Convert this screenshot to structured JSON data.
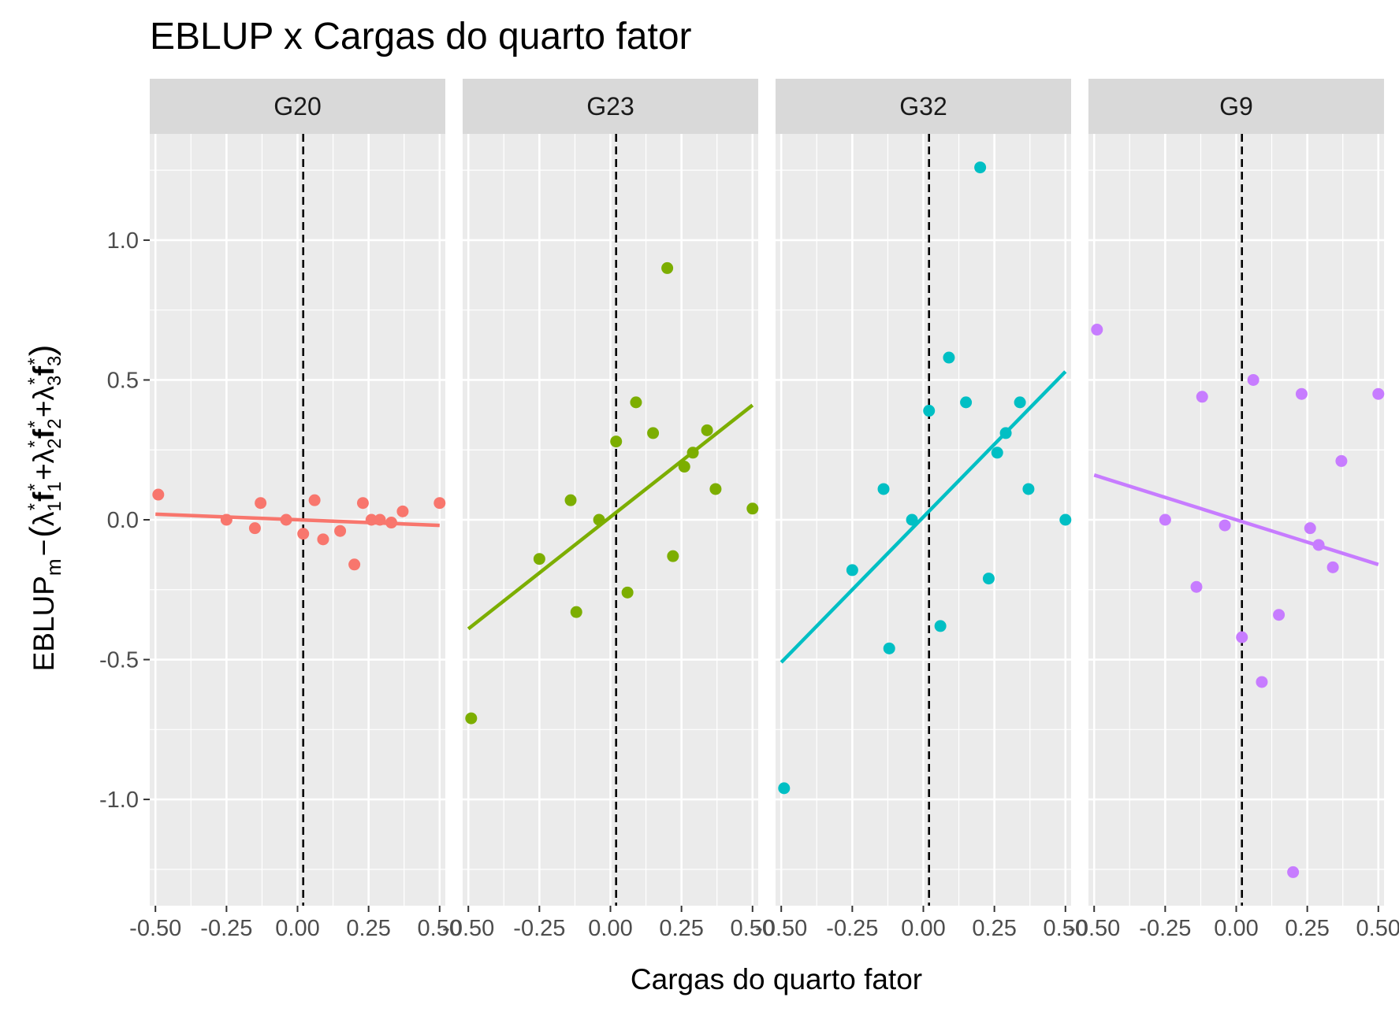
{
  "chart_data": {
    "type": "scatter",
    "title": "EBLUP x Cargas do quarto fator",
    "xlabel": "Cargas do quarto fator",
    "ylabel": {
      "main": "EBLUP",
      "sub_m": "m",
      "minus": "−",
      "open": "(",
      "close": ")",
      "plus": "+",
      "lambda": "λ",
      "star": "*",
      "f": "f",
      "i1": "1",
      "i2": "2",
      "i3": "3"
    },
    "xlim": [
      -0.52,
      0.52
    ],
    "ylim": [
      -1.38,
      1.38
    ],
    "x_ticks": [
      -0.5,
      -0.25,
      0,
      0.25,
      0.5
    ],
    "x_tick_labels": [
      "-0.50",
      "-0.25",
      "0.00",
      "0.25",
      "0.50"
    ],
    "y_ticks": [
      -1.0,
      -0.5,
      0.0,
      0.5,
      1.0
    ],
    "y_tick_labels": [
      "-1.0",
      "-0.5",
      "0.0",
      "0.5",
      "1.0"
    ],
    "vline_x": 0.02,
    "grid": true,
    "legend": "none",
    "panels": [
      {
        "name": "G20",
        "color": "#F8766D",
        "line": {
          "x": [
            -0.5,
            0.5
          ],
          "y": [
            0.02,
            -0.02
          ]
        },
        "points": [
          {
            "x": -0.49,
            "y": 0.09
          },
          {
            "x": -0.25,
            "y": 0.0
          },
          {
            "x": -0.15,
            "y": -0.03
          },
          {
            "x": -0.13,
            "y": 0.06
          },
          {
            "x": -0.04,
            "y": 0.0
          },
          {
            "x": 0.02,
            "y": -0.05
          },
          {
            "x": 0.06,
            "y": 0.07
          },
          {
            "x": 0.09,
            "y": -0.07
          },
          {
            "x": 0.15,
            "y": -0.04
          },
          {
            "x": 0.2,
            "y": -0.16
          },
          {
            "x": 0.23,
            "y": 0.06
          },
          {
            "x": 0.26,
            "y": 0.0
          },
          {
            "x": 0.29,
            "y": 0.0
          },
          {
            "x": 0.33,
            "y": -0.01
          },
          {
            "x": 0.37,
            "y": 0.03
          },
          {
            "x": 0.5,
            "y": 0.06
          }
        ]
      },
      {
        "name": "G23",
        "color": "#7CAE00",
        "line": {
          "x": [
            -0.5,
            0.5
          ],
          "y": [
            -0.39,
            0.41
          ]
        },
        "points": [
          {
            "x": -0.49,
            "y": -0.71
          },
          {
            "x": -0.25,
            "y": -0.14
          },
          {
            "x": -0.14,
            "y": 0.07
          },
          {
            "x": -0.12,
            "y": -0.33
          },
          {
            "x": -0.04,
            "y": 0.0
          },
          {
            "x": 0.02,
            "y": 0.28
          },
          {
            "x": 0.06,
            "y": -0.26
          },
          {
            "x": 0.09,
            "y": 0.42
          },
          {
            "x": 0.15,
            "y": 0.31
          },
          {
            "x": 0.2,
            "y": 0.9
          },
          {
            "x": 0.22,
            "y": -0.13
          },
          {
            "x": 0.26,
            "y": 0.19
          },
          {
            "x": 0.29,
            "y": 0.24
          },
          {
            "x": 0.34,
            "y": 0.32
          },
          {
            "x": 0.37,
            "y": 0.11
          },
          {
            "x": 0.5,
            "y": 0.04
          }
        ]
      },
      {
        "name": "G32",
        "color": "#00BFC4",
        "line": {
          "x": [
            -0.5,
            0.5
          ],
          "y": [
            -0.51,
            0.53
          ]
        },
        "points": [
          {
            "x": -0.49,
            "y": -0.96
          },
          {
            "x": -0.25,
            "y": -0.18
          },
          {
            "x": -0.14,
            "y": 0.11
          },
          {
            "x": -0.12,
            "y": -0.46
          },
          {
            "x": -0.04,
            "y": 0.0
          },
          {
            "x": 0.02,
            "y": 0.39
          },
          {
            "x": 0.06,
            "y": -0.38
          },
          {
            "x": 0.09,
            "y": 0.58
          },
          {
            "x": 0.15,
            "y": 0.42
          },
          {
            "x": 0.2,
            "y": 1.26
          },
          {
            "x": 0.23,
            "y": -0.21
          },
          {
            "x": 0.26,
            "y": 0.24
          },
          {
            "x": 0.29,
            "y": 0.31
          },
          {
            "x": 0.34,
            "y": 0.42
          },
          {
            "x": 0.37,
            "y": 0.11
          },
          {
            "x": 0.5,
            "y": 0.0
          }
        ]
      },
      {
        "name": "G9",
        "color": "#C77CFF",
        "line": {
          "x": [
            -0.5,
            0.5
          ],
          "y": [
            0.16,
            -0.16
          ]
        },
        "points": [
          {
            "x": -0.49,
            "y": 0.68
          },
          {
            "x": -0.25,
            "y": 0.0
          },
          {
            "x": -0.14,
            "y": -0.24
          },
          {
            "x": -0.12,
            "y": 0.44
          },
          {
            "x": -0.04,
            "y": -0.02
          },
          {
            "x": 0.02,
            "y": -0.42
          },
          {
            "x": 0.06,
            "y": 0.5
          },
          {
            "x": 0.09,
            "y": -0.58
          },
          {
            "x": 0.15,
            "y": -0.34
          },
          {
            "x": 0.2,
            "y": -1.26
          },
          {
            "x": 0.23,
            "y": 0.45
          },
          {
            "x": 0.26,
            "y": -0.03
          },
          {
            "x": 0.29,
            "y": -0.09
          },
          {
            "x": 0.34,
            "y": -0.17
          },
          {
            "x": 0.37,
            "y": 0.21
          },
          {
            "x": 0.5,
            "y": 0.45
          }
        ]
      }
    ]
  }
}
